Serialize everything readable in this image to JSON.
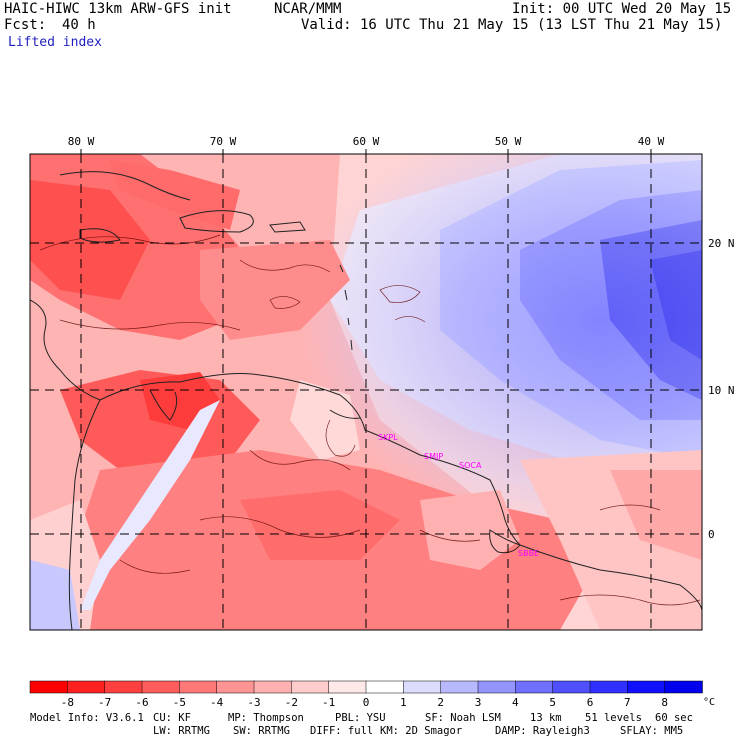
{
  "header": {
    "model_title": "HAIC-HIWC 13km ARW-GFS init",
    "org": "NCAR/MMM",
    "init_line": "Init: 00 UTC Wed 20 May 15",
    "fcst_label": "Fcst:",
    "fcst_value": "40 h",
    "valid_line": "Valid: 16 UTC Thu 21 May 15 (13 LST Thu 21 May 15)",
    "field_name": "Lifted index"
  },
  "map": {
    "lon_labels": [
      "80 W",
      "70 W",
      "60 W",
      "50 W",
      "40 W"
    ],
    "lat_labels": [
      "20 N",
      "10 N",
      "0"
    ],
    "station_labels": [
      "SKPL",
      "SMJP",
      "SOCA",
      "SBBE"
    ],
    "station_color": "#ff00ff"
  },
  "colorbar": {
    "ticks": [
      "-8",
      "-7",
      "-6",
      "-5",
      "-4",
      "-3",
      "-2",
      "-1",
      "0",
      "1",
      "2",
      "3",
      "4",
      "5",
      "6",
      "7",
      "8"
    ],
    "unit": "°C",
    "colors": [
      "#ff0000",
      "#ff2020",
      "#ff4040",
      "#ff5c5c",
      "#ff7878",
      "#ff9494",
      "#ffb0b0",
      "#ffcccc",
      "#ffe8e8",
      "#ffffff",
      "#dcdcff",
      "#b8b8ff",
      "#9494ff",
      "#7070ff",
      "#5050ff",
      "#3030ff",
      "#1010ff",
      "#0000ee"
    ]
  },
  "footer": {
    "line1": [
      "Model Info: V3.6.1",
      "CU: KF",
      "MP: Thompson",
      "PBL: YSU",
      "SF: Noah LSM",
      "13 km",
      "51 levels",
      "60 sec"
    ],
    "line2": [
      "LW: RRTMG",
      "SW: RRTMG",
      "DIFF: full",
      "KM: 2D Smagor",
      "DAMP: Rayleigh3",
      "SFLAY: MM5"
    ]
  }
}
